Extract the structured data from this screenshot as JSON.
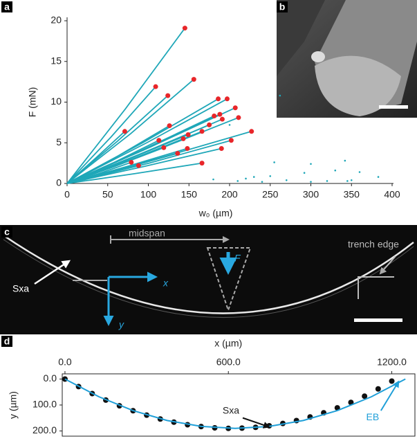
{
  "panel_labels": [
    "a",
    "b",
    "c",
    "d"
  ],
  "panel_c": {
    "midspan": "midspan",
    "force": "F",
    "trench_edge": "trench edge",
    "specimen": "Sxa",
    "x_axis": "x",
    "y_axis": "y"
  },
  "chart_data": [
    {
      "type": "line",
      "xlabel": "w₀ (µm)",
      "ylabel": "F (mN)",
      "xlim": [
        0,
        400
      ],
      "ylim": [
        0,
        20
      ],
      "xticks": [
        0,
        50,
        100,
        150,
        200,
        250,
        300,
        350,
        400
      ],
      "yticks": [
        0,
        5,
        10,
        15,
        20
      ],
      "color": "#1fa7b8",
      "marker_color": "#e8262a",
      "series": [
        {
          "x": [
            0,
            72,
            145
          ],
          "values": [
            0,
            9.2,
            19.1
          ]
        },
        {
          "x": [
            0,
            78,
            156
          ],
          "values": [
            0,
            6.1,
            12.8
          ]
        },
        {
          "x": [
            0,
            54,
            109
          ],
          "values": [
            0,
            5.7,
            11.9
          ]
        },
        {
          "x": [
            0,
            62,
            124
          ],
          "values": [
            0,
            5.2,
            10.8
          ]
        },
        {
          "x": [
            0,
            93,
            186
          ],
          "values": [
            0,
            5.0,
            10.4
          ]
        },
        {
          "x": [
            0,
            98,
            197
          ],
          "values": [
            0,
            5.0,
            10.4
          ]
        },
        {
          "x": [
            0,
            103,
            207
          ],
          "values": [
            0,
            4.5,
            9.3
          ]
        },
        {
          "x": [
            0,
            90,
            181
          ],
          "values": [
            0,
            4.0,
            8.3
          ]
        },
        {
          "x": [
            0,
            94,
            188
          ],
          "values": [
            0,
            4.1,
            8.5
          ]
        },
        {
          "x": [
            0,
            95,
            191
          ],
          "values": [
            0,
            3.8,
            7.9
          ]
        },
        {
          "x": [
            0,
            105,
            211
          ],
          "values": [
            0,
            3.9,
            8.1
          ]
        },
        {
          "x": [
            0,
            63,
            126
          ],
          "values": [
            0,
            3.4,
            7.1
          ]
        },
        {
          "x": [
            0,
            87,
            175
          ],
          "values": [
            0,
            3.5,
            7.2
          ]
        },
        {
          "x": [
            0,
            35,
            71
          ],
          "values": [
            0,
            3.1,
            6.4
          ]
        },
        {
          "x": [
            0,
            74,
            149
          ],
          "values": [
            0,
            2.9,
            6.0
          ]
        },
        {
          "x": [
            0,
            83,
            166
          ],
          "values": [
            0,
            3.1,
            6.4
          ]
        },
        {
          "x": [
            0,
            113,
            227
          ],
          "values": [
            0,
            3.1,
            6.4
          ]
        },
        {
          "x": [
            0,
            56,
            113
          ],
          "values": [
            0,
            2.5,
            5.3
          ]
        },
        {
          "x": [
            0,
            71,
            143
          ],
          "values": [
            0,
            2.6,
            5.5
          ]
        },
        {
          "x": [
            0,
            101,
            202
          ],
          "values": [
            0,
            2.5,
            5.3
          ]
        },
        {
          "x": [
            0,
            59,
            119
          ],
          "values": [
            0,
            2.1,
            4.4
          ]
        },
        {
          "x": [
            0,
            68,
            136
          ],
          "values": [
            0,
            1.8,
            3.7
          ]
        },
        {
          "x": [
            0,
            74,
            148
          ],
          "values": [
            0,
            2.1,
            4.3
          ]
        },
        {
          "x": [
            0,
            95,
            190
          ],
          "values": [
            0,
            2.1,
            4.3
          ]
        },
        {
          "x": [
            0,
            39,
            79
          ],
          "values": [
            0,
            1.2,
            2.6
          ]
        },
        {
          "x": [
            0,
            44,
            88
          ],
          "values": [
            0,
            1.1,
            2.2
          ]
        },
        {
          "x": [
            0,
            83,
            166
          ],
          "values": [
            0,
            1.2,
            2.5
          ]
        }
      ],
      "points": {
        "x": [
          200,
          262,
          255,
          300,
          342,
          292,
          330,
          360,
          383,
          350,
          230,
          210,
          240,
          270,
          300,
          320,
          180,
          250,
          220,
          345
        ],
        "values": [
          7.2,
          10.8,
          2.6,
          2.4,
          2.8,
          1.3,
          1.6,
          1.4,
          0.8,
          0.4,
          0.8,
          0.3,
          0.2,
          0.4,
          0.2,
          0.3,
          0.5,
          0.9,
          0.6,
          0.3
        ]
      }
    },
    {
      "type": "scatter",
      "xlabel": "x (µm)",
      "ylabel": "y (µm)",
      "xlim": [
        -10,
        1285
      ],
      "ylim": [
        -20,
        220
      ],
      "y_inverted": true,
      "x_axis_top": true,
      "xticks": [
        {
          "value": 0,
          "label": "0.0"
        },
        {
          "value": 600,
          "label": "600.0"
        },
        {
          "value": 1200,
          "label": "1200.0"
        }
      ],
      "yticks": [
        {
          "value": 0,
          "label": "0.0"
        },
        {
          "value": 100,
          "label": "100.0"
        },
        {
          "value": 200,
          "label": "200.0"
        }
      ],
      "series": [
        {
          "name": "Sxa",
          "color": "#111111",
          "x": [
            0,
            50,
            100,
            150,
            200,
            250,
            300,
            350,
            400,
            450,
            500,
            550,
            600,
            650,
            700,
            750,
            800,
            850,
            900,
            950,
            1000,
            1050,
            1100,
            1150,
            1200
          ],
          "values": [
            0,
            29,
            56,
            81,
            103,
            122,
            139,
            154,
            166,
            176,
            183,
            188,
            190,
            189,
            186,
            180,
            171,
            160,
            146,
            130,
            111,
            90,
            66,
            38,
            8
          ]
        },
        {
          "name": "EB",
          "color": "#1f9fd8",
          "style": "line",
          "x": [
            0,
            125,
            250,
            375,
            500,
            625,
            750,
            875,
            1000,
            1125,
            1250
          ],
          "values": [
            0,
            68.4,
            121.6,
            159.6,
            182.4,
            190,
            182.4,
            159.6,
            121.6,
            68.4,
            0
          ]
        }
      ]
    }
  ]
}
